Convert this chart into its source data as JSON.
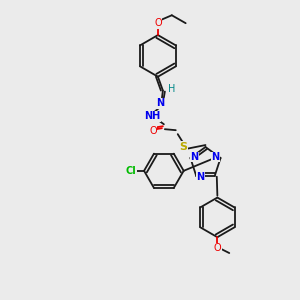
{
  "background_color": "#ebebeb",
  "bond_color": "#1a1a1a",
  "atom_colors": {
    "N": "#0000ee",
    "O": "#ee0000",
    "S": "#bbaa00",
    "Cl": "#00bb00",
    "C": "#1a1a1a",
    "H": "#008888"
  },
  "figsize": [
    3.0,
    3.0
  ],
  "dpi": 100
}
